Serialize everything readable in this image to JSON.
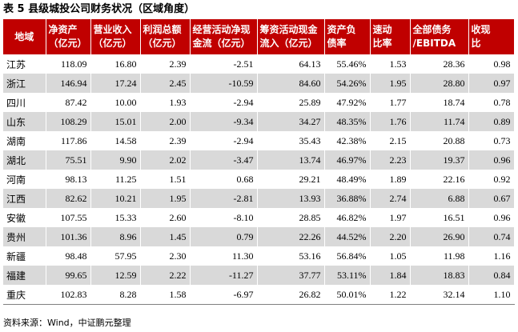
{
  "title": "表 5 县级城投公司财务状况（区域角度）",
  "headers": [
    {
      "line1": "地域",
      "line2": ""
    },
    {
      "line1": "净资产",
      "line2": "（亿元）"
    },
    {
      "line1": "营业收入",
      "line2": "（亿元）"
    },
    {
      "line1": "利润总额",
      "line2": "（亿元）"
    },
    {
      "line1": "经营活动净现",
      "line2": "金流（亿元）"
    },
    {
      "line1": "筹资活动现金",
      "line2": "流入（亿元）"
    },
    {
      "line1": "资产负",
      "line2": "债率"
    },
    {
      "line1": "速动",
      "line2": "比率"
    },
    {
      "line1": "全部债务",
      "line2": "/EBITDA"
    },
    {
      "line1": "收现",
      "line2": "比"
    }
  ],
  "rows": [
    [
      "江苏",
      "118.09",
      "16.80",
      "2.39",
      "-2.51",
      "64.13",
      "55.46%",
      "1.53",
      "28.36",
      "0.98"
    ],
    [
      "浙江",
      "146.94",
      "17.24",
      "2.45",
      "-10.59",
      "84.60",
      "54.26%",
      "1.95",
      "28.80",
      "0.97"
    ],
    [
      "四川",
      "87.42",
      "10.00",
      "1.93",
      "-2.94",
      "25.89",
      "47.92%",
      "1.77",
      "18.74",
      "0.78"
    ],
    [
      "山东",
      "108.29",
      "15.01",
      "2.00",
      "-9.34",
      "34.27",
      "48.35%",
      "1.76",
      "11.74",
      "0.89"
    ],
    [
      "湖南",
      "117.86",
      "14.58",
      "2.39",
      "-2.94",
      "35.43",
      "42.38%",
      "2.15",
      "20.88",
      "0.73"
    ],
    [
      "湖北",
      "75.51",
      "9.90",
      "2.02",
      "-3.47",
      "13.74",
      "46.97%",
      "2.23",
      "19.37",
      "0.96"
    ],
    [
      "河南",
      "98.13",
      "11.25",
      "1.51",
      "0.68",
      "29.21",
      "48.49%",
      "1.89",
      "22.16",
      "0.92"
    ],
    [
      "江西",
      "82.62",
      "10.21",
      "1.95",
      "-2.81",
      "13.93",
      "36.88%",
      "2.74",
      "6.88",
      "0.67"
    ],
    [
      "安徽",
      "107.55",
      "15.33",
      "2.60",
      "-8.10",
      "28.85",
      "46.82%",
      "1.97",
      "16.51",
      "0.96"
    ],
    [
      "贵州",
      "101.36",
      "8.96",
      "1.45",
      "0.79",
      "22.26",
      "44.52%",
      "2.20",
      "26.90",
      "0.74"
    ],
    [
      "新疆",
      "98.48",
      "57.95",
      "2.30",
      "11.30",
      "53.16",
      "56.84%",
      "1.05",
      "11.98",
      "1.16"
    ],
    [
      "福建",
      "99.65",
      "12.59",
      "2.22",
      "-11.27",
      "37.77",
      "53.11%",
      "1.84",
      "18.83",
      "0.84"
    ],
    [
      "重庆",
      "102.83",
      "8.28",
      "1.58",
      "-6.97",
      "26.82",
      "50.01%",
      "1.22",
      "32.14",
      "1.10"
    ]
  ],
  "source": "资料来源：Wind，中证鹏元整理",
  "colors": {
    "header_bg": "#c00000",
    "header_text": "#ffffff",
    "stripe": "#d9d9d9"
  }
}
